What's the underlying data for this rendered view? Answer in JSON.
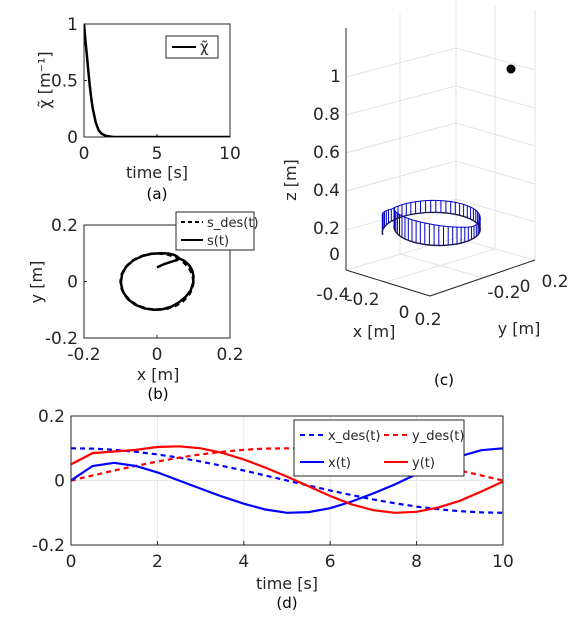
{
  "chart_data": [
    {
      "id": "a",
      "type": "line",
      "caption": "(a)",
      "xlabel": "time [s]",
      "ylabel": "χ̃ [m⁻¹]",
      "xlim": [
        0,
        10
      ],
      "ylim": [
        0,
        1
      ],
      "xticks": [
        "0",
        "5",
        "10"
      ],
      "yticks": [
        "0",
        "0.5",
        "1"
      ],
      "legend": [
        "χ̃"
      ],
      "legend_position": "top-right",
      "grid": false,
      "series": [
        {
          "name": "χ̃",
          "color": "#000000",
          "style": "solid",
          "x": [
            0,
            0.1,
            0.2,
            0.3,
            0.4,
            0.5,
            0.6,
            0.8,
            1.0,
            1.2,
            1.5,
            2.0,
            2.5,
            3,
            4,
            5,
            6,
            7,
            8,
            9,
            10
          ],
          "y": [
            1.0,
            0.85,
            0.72,
            0.58,
            0.45,
            0.34,
            0.25,
            0.13,
            0.06,
            0.03,
            0.01,
            0.0,
            0.0,
            0,
            0,
            0,
            0,
            0,
            0,
            0,
            0
          ]
        }
      ]
    },
    {
      "id": "b",
      "type": "line",
      "caption": "(b)",
      "xlabel": "x [m]",
      "ylabel": "y [m]",
      "xlim": [
        -0.2,
        0.2
      ],
      "ylim": [
        -0.2,
        0.2
      ],
      "xticks": [
        "-0.2",
        "0",
        "0.2"
      ],
      "yticks": [
        "-0.2",
        "0",
        "0.2"
      ],
      "legend": [
        "s_des(t)",
        "s(t)"
      ],
      "legend_position": "top-right",
      "grid": false,
      "series": [
        {
          "name": "s_des(t)",
          "color": "#000000",
          "style": "dashed",
          "x": [
            0.1,
            0.0966,
            0.0866,
            0.0707,
            0.05,
            0.0259,
            0.0,
            -0.0259,
            -0.05,
            -0.0707,
            -0.0866,
            -0.0966,
            -0.1,
            -0.0966,
            -0.0866,
            -0.0707,
            -0.05,
            -0.0259,
            0.0,
            0.0259,
            0.05,
            0.0707,
            0.0866,
            0.0966,
            0.1
          ],
          "y": [
            0.0,
            0.0259,
            0.05,
            0.0707,
            0.0866,
            0.0966,
            0.1,
            0.0966,
            0.0866,
            0.0707,
            0.05,
            0.0259,
            0.0,
            -0.0259,
            -0.05,
            -0.0707,
            -0.0866,
            -0.0966,
            -0.1,
            -0.0966,
            -0.0866,
            -0.0707,
            -0.05,
            -0.0259,
            0.0
          ]
        },
        {
          "name": "s(t)",
          "color": "#000000",
          "style": "solid",
          "x": [
            0.0,
            0.02,
            0.04,
            0.055,
            0.06,
            0.055,
            0.045,
            0.03,
            0.01,
            -0.015,
            -0.04,
            -0.065,
            -0.085,
            -0.096,
            -0.099,
            -0.094,
            -0.08,
            -0.06,
            -0.035,
            -0.01,
            0.015,
            0.04,
            0.06,
            0.078,
            0.092,
            0.099,
            0.1,
            0.097,
            0.088,
            0.075,
            0.06
          ],
          "y": [
            0.05,
            0.062,
            0.07,
            0.076,
            0.082,
            0.089,
            0.095,
            0.099,
            0.1,
            0.098,
            0.09,
            0.075,
            0.052,
            0.025,
            -0.005,
            -0.035,
            -0.062,
            -0.082,
            -0.095,
            -0.1,
            -0.098,
            -0.089,
            -0.074,
            -0.055,
            -0.032,
            -0.006,
            0.018,
            0.038,
            0.058,
            0.073,
            0.082
          ]
        }
      ]
    },
    {
      "id": "c",
      "type": "scatter",
      "caption": "(c)",
      "xlabel": "x [m]",
      "ylabel": "y [m]",
      "zlabel": "z [m]",
      "xticks": [
        "-0.2",
        "0",
        "0.2"
      ],
      "yticks": [
        "-0.2",
        "0",
        "0.2"
      ],
      "zticks": [
        "-0.4",
        "0",
        "0.2",
        "0.4",
        "0.6",
        "0.8",
        "1"
      ],
      "grid": true,
      "marker": {
        "x": 0.1,
        "y": 0.1,
        "z": 1.05,
        "color": "#000000"
      },
      "curve_color": "#0000cc"
    },
    {
      "id": "d",
      "type": "line",
      "caption": "(d)",
      "xlabel": "time [s]",
      "xlim": [
        0,
        10
      ],
      "ylim": [
        -0.2,
        0.2
      ],
      "xticks": [
        "0",
        "2",
        "4",
        "6",
        "8",
        "10"
      ],
      "yticks": [
        "-0.2",
        "0",
        "0.2"
      ],
      "legend": [
        "x_des(t)",
        "y_des(t)",
        "x(t)",
        "y(t)"
      ],
      "legend_position": "top-right",
      "grid": true,
      "series": [
        {
          "name": "x_des(t)",
          "color": "#0000ff",
          "style": "dashed",
          "x": [
            0,
            0.5,
            1,
            1.5,
            2,
            2.5,
            3,
            3.5,
            4,
            4.5,
            5,
            5.5,
            6,
            6.5,
            7,
            7.5,
            8,
            8.5,
            9,
            9.5,
            10
          ],
          "y": [
            0.1,
            0.0988,
            0.0951,
            0.0891,
            0.0809,
            0.0707,
            0.0588,
            0.0454,
            0.0309,
            0.0156,
            0.0,
            -0.0156,
            -0.0309,
            -0.0454,
            -0.0588,
            -0.0707,
            -0.0809,
            -0.0891,
            -0.0951,
            -0.0988,
            -0.1
          ]
        },
        {
          "name": "y_des(t)",
          "color": "#ff0000",
          "style": "dashed",
          "x": [
            0,
            0.5,
            1,
            1.5,
            2,
            2.5,
            3,
            3.5,
            4,
            4.5,
            5,
            5.5,
            6,
            6.5,
            7,
            7.5,
            8,
            8.5,
            9,
            9.5,
            10
          ],
          "y": [
            0.0,
            0.0156,
            0.0309,
            0.0454,
            0.0588,
            0.0707,
            0.0809,
            0.0891,
            0.0951,
            0.0988,
            0.1,
            0.0988,
            0.0951,
            0.0891,
            0.0809,
            0.0707,
            0.0588,
            0.0454,
            0.0309,
            0.0156,
            0.0
          ]
        },
        {
          "name": "x(t)",
          "color": "#0000ff",
          "style": "solid",
          "x": [
            0,
            0.5,
            1,
            1.5,
            2,
            2.5,
            3,
            3.5,
            4,
            4.5,
            5,
            5.5,
            6,
            6.5,
            7,
            7.5,
            8,
            8.5,
            9,
            9.5,
            10
          ],
          "y": [
            0.0,
            0.045,
            0.055,
            0.045,
            0.025,
            0.0,
            -0.025,
            -0.05,
            -0.072,
            -0.09,
            -0.1,
            -0.098,
            -0.086,
            -0.065,
            -0.04,
            -0.012,
            0.02,
            0.05,
            0.075,
            0.094,
            0.1
          ]
        },
        {
          "name": "y(t)",
          "color": "#ff0000",
          "style": "solid",
          "x": [
            0,
            0.5,
            1,
            1.5,
            2,
            2.5,
            3,
            3.5,
            4,
            4.5,
            5,
            5.5,
            6,
            6.5,
            7,
            7.5,
            8,
            8.5,
            9,
            9.5,
            10
          ],
          "y": [
            0.05,
            0.085,
            0.09,
            0.095,
            0.104,
            0.106,
            0.1,
            0.086,
            0.065,
            0.04,
            0.012,
            -0.018,
            -0.048,
            -0.074,
            -0.092,
            -0.1,
            -0.097,
            -0.084,
            -0.063,
            -0.034,
            -0.003
          ]
        }
      ]
    }
  ]
}
